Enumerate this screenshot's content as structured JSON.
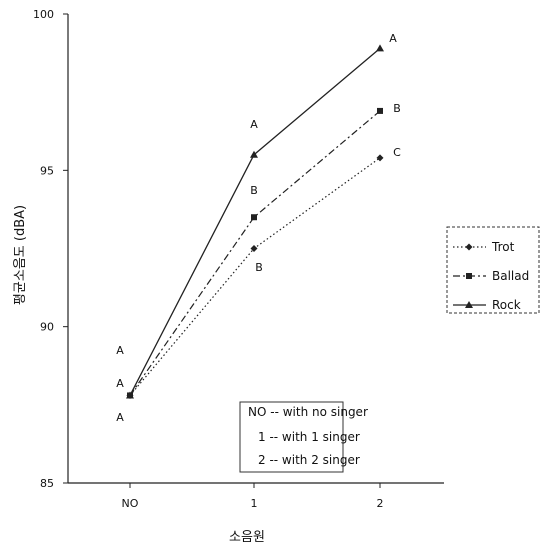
{
  "chart_data": {
    "type": "line",
    "title": "",
    "xlabel": "소음원",
    "ylabel": "평균소음도 (dBA)",
    "categories": [
      "NO",
      "1",
      "2"
    ],
    "ylim": [
      85,
      100
    ],
    "yticks": [
      "85",
      "90",
      "95",
      "100"
    ],
    "grid": false,
    "legend_position": "right",
    "series": [
      {
        "name": "Trot",
        "values": [
          87.8,
          92.5,
          95.4
        ],
        "letters": [
          "A",
          "B",
          "C"
        ],
        "marker": "diamond",
        "dash": "1.5,2.5",
        "color": "#222222"
      },
      {
        "name": "Ballad",
        "values": [
          87.8,
          93.5,
          96.9
        ],
        "letters": [
          "A",
          "B",
          "B"
        ],
        "marker": "square",
        "dash": "7,3,2,3",
        "color": "#222222"
      },
      {
        "name": "Rock",
        "values": [
          87.8,
          95.5,
          98.9
        ],
        "letters": [
          "A",
          "A",
          "A"
        ],
        "marker": "triangle",
        "dash": "",
        "color": "#222222"
      }
    ],
    "annotation_box": [
      "NO -- with no singer",
      "1 -- with  1 singer",
      "2 -- with  2 singer"
    ]
  }
}
